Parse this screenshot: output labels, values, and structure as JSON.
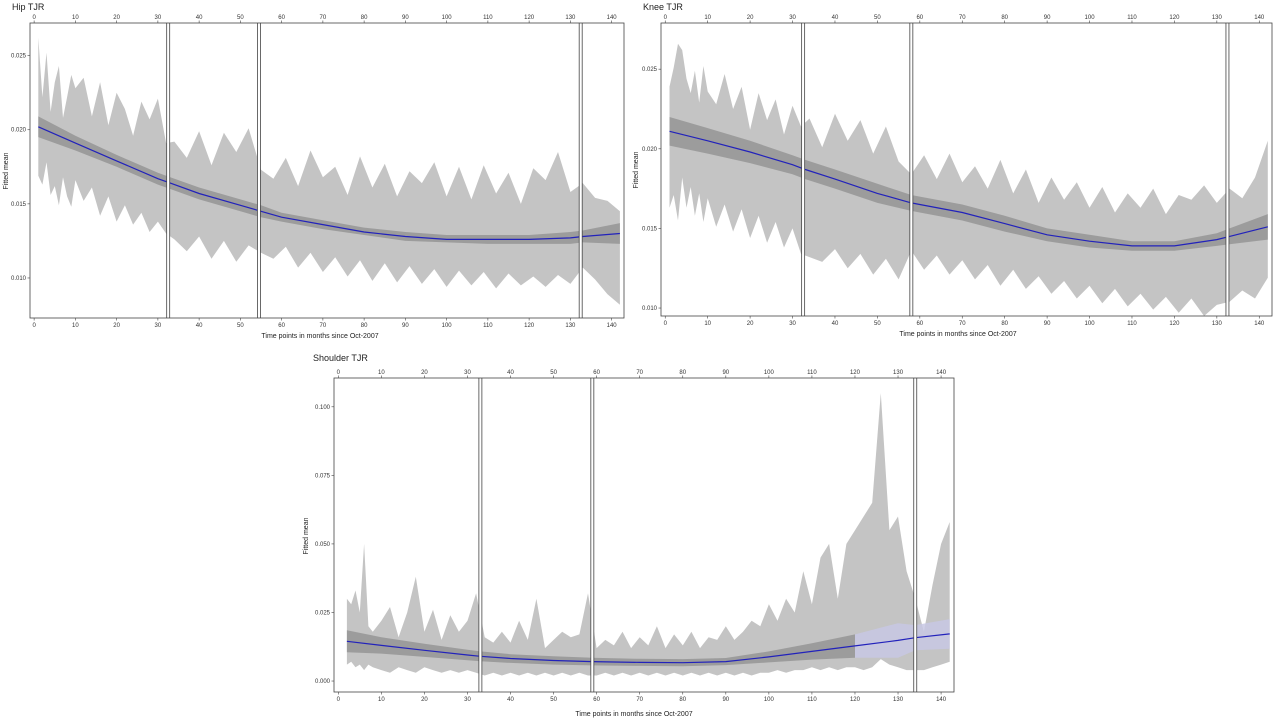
{
  "chart_data": [
    {
      "type": "line",
      "title": "Hip TJR",
      "xlabel": "Time points in months since Oct-2007",
      "ylabel": "Fitted mean",
      "xlim": [
        -1,
        143
      ],
      "ylim": [
        0.0073,
        0.0272
      ],
      "x_ticks": [
        0,
        10,
        20,
        30,
        40,
        50,
        60,
        70,
        80,
        90,
        100,
        110,
        120,
        130,
        140
      ],
      "y_ticks": [
        0.01,
        0.015,
        0.02,
        0.025
      ],
      "y_tick_labels": [
        "0.010",
        "0.015",
        "0.020",
        "0.025"
      ],
      "segment_breaks": [
        32.5,
        54.5,
        132.5
      ],
      "colors": {
        "line": "#2222bb",
        "band": "#c4c4c4",
        "ci": "#8f8f8f"
      },
      "fit_curve": {
        "x": [
          1,
          10,
          20,
          30,
          33,
          40,
          50,
          55,
          60,
          70,
          80,
          90,
          100,
          110,
          120,
          130,
          133,
          142
        ],
        "y": [
          0.0202,
          0.0191,
          0.0179,
          0.0167,
          0.0164,
          0.0157,
          0.0149,
          0.0145,
          0.0141,
          0.0136,
          0.0131,
          0.0128,
          0.0126,
          0.0126,
          0.0126,
          0.0127,
          0.0128,
          0.013
        ]
      },
      "ci_band": {
        "x": [
          1,
          10,
          20,
          30,
          33,
          40,
          50,
          55,
          60,
          70,
          80,
          90,
          100,
          110,
          120,
          130,
          133,
          142
        ],
        "lower": [
          0.0195,
          0.0186,
          0.0175,
          0.0163,
          0.016,
          0.0153,
          0.0145,
          0.0141,
          0.0138,
          0.0133,
          0.0129,
          0.0125,
          0.0124,
          0.0123,
          0.0123,
          0.0123,
          0.0124,
          0.0123
        ],
        "upper": [
          0.0209,
          0.0196,
          0.0183,
          0.0171,
          0.0168,
          0.0161,
          0.0153,
          0.0149,
          0.0144,
          0.0139,
          0.0134,
          0.0131,
          0.0129,
          0.0129,
          0.0129,
          0.0131,
          0.0132,
          0.0137
        ]
      },
      "range_band": {
        "x": [
          1,
          2,
          3,
          4,
          5,
          6,
          7,
          8,
          9,
          10,
          12,
          14,
          16,
          18,
          20,
          22,
          24,
          26,
          28,
          30,
          32,
          34,
          37,
          40,
          43,
          46,
          49,
          52,
          55,
          58,
          61,
          64,
          67,
          70,
          73,
          76,
          79,
          82,
          85,
          88,
          91,
          94,
          97,
          100,
          103,
          106,
          109,
          112,
          115,
          118,
          121,
          124,
          127,
          130,
          133,
          136,
          139,
          142
        ],
        "upper": [
          0.0262,
          0.0222,
          0.0252,
          0.0212,
          0.0232,
          0.0243,
          0.0208,
          0.0222,
          0.0237,
          0.0228,
          0.0235,
          0.0209,
          0.0232,
          0.0203,
          0.0225,
          0.0214,
          0.0196,
          0.0219,
          0.0207,
          0.0221,
          0.0191,
          0.0192,
          0.0181,
          0.0199,
          0.0176,
          0.0198,
          0.0185,
          0.0201,
          0.0173,
          0.0167,
          0.0181,
          0.0162,
          0.0186,
          0.0168,
          0.0175,
          0.0156,
          0.0182,
          0.0161,
          0.0177,
          0.0155,
          0.0172,
          0.0164,
          0.0178,
          0.0155,
          0.0175,
          0.0153,
          0.0176,
          0.0157,
          0.0171,
          0.015,
          0.0174,
          0.0166,
          0.0185,
          0.0158,
          0.0164,
          0.0154,
          0.0152,
          0.0145
        ],
        "lower": [
          0.0169,
          0.0163,
          0.0178,
          0.0156,
          0.0162,
          0.0149,
          0.0168,
          0.0155,
          0.0148,
          0.0166,
          0.0152,
          0.0161,
          0.0142,
          0.0155,
          0.0138,
          0.0149,
          0.0136,
          0.0144,
          0.0131,
          0.0138,
          0.013,
          0.0126,
          0.0118,
          0.0128,
          0.0113,
          0.0125,
          0.0111,
          0.0122,
          0.0117,
          0.0113,
          0.0121,
          0.0107,
          0.0117,
          0.0104,
          0.0114,
          0.0101,
          0.0112,
          0.0098,
          0.011,
          0.0097,
          0.0108,
          0.0096,
          0.0106,
          0.0094,
          0.0105,
          0.0095,
          0.0104,
          0.0093,
          0.0103,
          0.0095,
          0.0101,
          0.0094,
          0.0102,
          0.0096,
          0.0107,
          0.0099,
          0.0089,
          0.0082
        ]
      }
    },
    {
      "type": "line",
      "title": "Knee TJR",
      "xlabel": "Time points in months since Oct-2007",
      "ylabel": "Fitted mean",
      "xlim": [
        -1,
        143
      ],
      "ylim": [
        0.0095,
        0.0279
      ],
      "x_ticks": [
        0,
        10,
        20,
        30,
        40,
        50,
        60,
        70,
        80,
        90,
        100,
        110,
        120,
        130,
        140
      ],
      "y_ticks": [
        0.01,
        0.015,
        0.02,
        0.025
      ],
      "y_tick_labels": [
        "0.010",
        "0.015",
        "0.020",
        "0.025"
      ],
      "segment_breaks": [
        32.5,
        58,
        132.5
      ],
      "colors": {
        "line": "#2222bb",
        "band": "#c4c4c4",
        "ci": "#8f8f8f"
      },
      "fit_curve": {
        "x": [
          1,
          10,
          20,
          30,
          33,
          40,
          50,
          58,
          60,
          70,
          80,
          90,
          100,
          110,
          120,
          130,
          133,
          142
        ],
        "y": [
          0.0211,
          0.0205,
          0.0198,
          0.019,
          0.0187,
          0.0181,
          0.0172,
          0.0166,
          0.0165,
          0.016,
          0.0153,
          0.0146,
          0.0142,
          0.0139,
          0.0139,
          0.0143,
          0.0145,
          0.0151
        ]
      },
      "ci_band": {
        "x": [
          1,
          10,
          20,
          30,
          33,
          40,
          50,
          58,
          60,
          70,
          80,
          90,
          100,
          110,
          120,
          130,
          133,
          142
        ],
        "lower": [
          0.0202,
          0.0197,
          0.0191,
          0.0184,
          0.0181,
          0.0175,
          0.0166,
          0.0161,
          0.016,
          0.0155,
          0.0148,
          0.0142,
          0.0138,
          0.0136,
          0.0136,
          0.0139,
          0.014,
          0.0143
        ],
        "upper": [
          0.022,
          0.0213,
          0.0205,
          0.0196,
          0.0193,
          0.0187,
          0.0178,
          0.0171,
          0.017,
          0.0165,
          0.0158,
          0.015,
          0.0146,
          0.0142,
          0.0142,
          0.0147,
          0.015,
          0.0159
        ]
      },
      "range_band": {
        "x": [
          1,
          2,
          3,
          4,
          5,
          6,
          7,
          8,
          9,
          10,
          12,
          14,
          16,
          18,
          20,
          22,
          24,
          26,
          28,
          30,
          32,
          34,
          37,
          40,
          43,
          46,
          49,
          52,
          55,
          58,
          61,
          64,
          67,
          70,
          73,
          76,
          79,
          82,
          85,
          88,
          91,
          94,
          97,
          100,
          103,
          106,
          109,
          112,
          115,
          118,
          121,
          124,
          127,
          130,
          133,
          136,
          139,
          142
        ],
        "upper": [
          0.0239,
          0.0251,
          0.0266,
          0.0262,
          0.0244,
          0.0235,
          0.0249,
          0.0229,
          0.0252,
          0.0236,
          0.0228,
          0.0247,
          0.0225,
          0.0239,
          0.0212,
          0.0235,
          0.0218,
          0.0231,
          0.0209,
          0.0227,
          0.0214,
          0.0219,
          0.0201,
          0.0222,
          0.0205,
          0.0218,
          0.0197,
          0.0214,
          0.0192,
          0.0184,
          0.0196,
          0.0181,
          0.0197,
          0.0179,
          0.0189,
          0.0175,
          0.0193,
          0.0172,
          0.0187,
          0.0166,
          0.0182,
          0.0168,
          0.0179,
          0.0163,
          0.0176,
          0.016,
          0.0172,
          0.0163,
          0.0175,
          0.0159,
          0.0171,
          0.0168,
          0.0177,
          0.0166,
          0.0175,
          0.0169,
          0.0182,
          0.0205
        ],
        "lower": [
          0.0163,
          0.0171,
          0.0155,
          0.0182,
          0.0163,
          0.0176,
          0.0158,
          0.0172,
          0.0154,
          0.0169,
          0.0151,
          0.0165,
          0.0148,
          0.0162,
          0.0144,
          0.0158,
          0.0141,
          0.0154,
          0.0138,
          0.015,
          0.0134,
          0.0132,
          0.0129,
          0.0137,
          0.0125,
          0.0134,
          0.0121,
          0.0131,
          0.0118,
          0.0136,
          0.0124,
          0.0133,
          0.0121,
          0.013,
          0.0118,
          0.0127,
          0.0114,
          0.0124,
          0.0112,
          0.012,
          0.0109,
          0.0117,
          0.0106,
          0.0114,
          0.0103,
          0.0112,
          0.0101,
          0.0109,
          0.0099,
          0.0107,
          0.0097,
          0.0106,
          0.0095,
          0.0102,
          0.0104,
          0.0111,
          0.0106,
          0.0119
        ]
      }
    },
    {
      "type": "line",
      "title": "Shoulder TJR",
      "xlabel": "Time points in months since Oct-2007",
      "ylabel": "Fitted mean",
      "xlim": [
        -1,
        143
      ],
      "ylim": [
        -0.004,
        0.1105
      ],
      "x_ticks": [
        0,
        10,
        20,
        30,
        40,
        50,
        60,
        70,
        80,
        90,
        100,
        110,
        120,
        130,
        140
      ],
      "y_ticks": [
        0.0,
        0.025,
        0.05,
        0.075,
        0.1
      ],
      "y_tick_labels": [
        "0.000",
        "0.025",
        "0.050",
        "0.075",
        "0.100"
      ],
      "segment_breaks": [
        33,
        59,
        134
      ],
      "colors": {
        "line": "#2222bb",
        "band": "#c4c4c4",
        "ci": "#8f8f8f",
        "ci_extended": "#c8c8e4"
      },
      "fit_curve": {
        "x": [
          2,
          10,
          20,
          30,
          33,
          40,
          50,
          59,
          70,
          80,
          90,
          100,
          110,
          120,
          130,
          134,
          142
        ],
        "y": [
          0.0145,
          0.013,
          0.0112,
          0.0095,
          0.009,
          0.0082,
          0.0075,
          0.0071,
          0.0068,
          0.0067,
          0.0071,
          0.0088,
          0.0108,
          0.0128,
          0.0148,
          0.0158,
          0.0172
        ]
      },
      "ci_band": {
        "x": [
          2,
          10,
          20,
          30,
          33,
          40,
          50,
          59,
          70,
          80,
          90,
          100,
          110,
          120,
          130,
          134,
          142
        ],
        "lower": [
          0.0105,
          0.01,
          0.0088,
          0.0076,
          0.0072,
          0.0066,
          0.006,
          0.0057,
          0.0055,
          0.0054,
          0.0058,
          0.0068,
          0.0078,
          0.0085,
          0.0085,
          0.0112,
          0.0118
        ],
        "upper": [
          0.0185,
          0.016,
          0.0136,
          0.0114,
          0.0108,
          0.0098,
          0.009,
          0.0085,
          0.0081,
          0.008,
          0.0084,
          0.0108,
          0.0138,
          0.017,
          0.0211,
          0.0204,
          0.0226
        ]
      },
      "range_band": {
        "x": [
          2,
          3,
          4,
          5,
          6,
          7,
          8,
          10,
          12,
          14,
          16,
          18,
          20,
          22,
          24,
          26,
          28,
          30,
          32,
          34,
          36,
          38,
          40,
          42,
          44,
          46,
          48,
          50,
          52,
          54,
          56,
          58,
          60,
          62,
          64,
          66,
          68,
          70,
          72,
          74,
          76,
          78,
          80,
          82,
          84,
          86,
          88,
          90,
          92,
          94,
          96,
          98,
          100,
          102,
          104,
          106,
          108,
          110,
          112,
          114,
          116,
          118,
          120,
          122,
          124,
          126,
          128,
          130,
          132,
          134,
          136,
          138,
          140,
          142
        ],
        "upper": [
          0.03,
          0.028,
          0.033,
          0.025,
          0.05,
          0.02,
          0.018,
          0.022,
          0.027,
          0.016,
          0.025,
          0.038,
          0.018,
          0.026,
          0.015,
          0.024,
          0.018,
          0.022,
          0.032,
          0.016,
          0.014,
          0.018,
          0.014,
          0.022,
          0.015,
          0.03,
          0.012,
          0.015,
          0.018,
          0.016,
          0.017,
          0.032,
          0.012,
          0.015,
          0.013,
          0.018,
          0.012,
          0.016,
          0.013,
          0.02,
          0.012,
          0.017,
          0.013,
          0.018,
          0.012,
          0.016,
          0.015,
          0.02,
          0.015,
          0.018,
          0.022,
          0.02,
          0.028,
          0.022,
          0.03,
          0.025,
          0.04,
          0.028,
          0.045,
          0.05,
          0.03,
          0.05,
          0.055,
          0.06,
          0.065,
          0.105,
          0.055,
          0.06,
          0.04,
          0.03,
          0.018,
          0.035,
          0.05,
          0.058
        ],
        "lower": [
          0.006,
          0.007,
          0.005,
          0.006,
          0.004,
          0.006,
          0.005,
          0.004,
          0.003,
          0.005,
          0.004,
          0.003,
          0.005,
          0.004,
          0.003,
          0.004,
          0.003,
          0.004,
          0.003,
          0.002,
          0.003,
          0.002,
          0.003,
          0.002,
          0.003,
          0.002,
          0.003,
          0.002,
          0.003,
          0.002,
          0.003,
          0.002,
          0.002,
          0.003,
          0.002,
          0.003,
          0.002,
          0.003,
          0.002,
          0.003,
          0.002,
          0.003,
          0.002,
          0.003,
          0.002,
          0.003,
          0.002,
          0.003,
          0.002,
          0.003,
          0.002,
          0.003,
          0.003,
          0.004,
          0.003,
          0.004,
          0.004,
          0.005,
          0.004,
          0.005,
          0.004,
          0.005,
          0.005,
          0.004,
          0.005,
          0.008,
          0.006,
          0.005,
          0.004,
          0.004,
          0.004,
          0.005,
          0.006,
          0.007
        ]
      }
    }
  ]
}
